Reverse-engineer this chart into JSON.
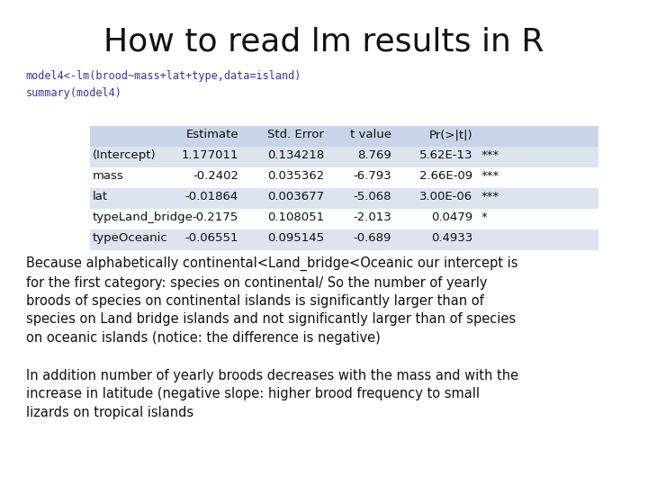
{
  "title": "How to read lm results in R",
  "code_line1": "model4<-lm(brood~mass+lat+type,data=island)",
  "code_line2": "summary(model4)",
  "table_headers": [
    "Estimate",
    "Std. Error",
    "t value",
    "Pr(>|t|)"
  ],
  "table_rows": [
    [
      "(Intercept)",
      "1.177011",
      "0.134218",
      "8.769",
      "5.62E-13",
      "***"
    ],
    [
      "mass",
      "-0.2402",
      "0.035362",
      "-6.793",
      "2.66E-09",
      "***"
    ],
    [
      "lat",
      "-0.01864",
      "0.003677",
      "-5.068",
      "3.00E-06",
      "***"
    ],
    [
      "typeLand_bridge",
      "-0.2175",
      "0.108051",
      "-2.013",
      "0.0479",
      "*"
    ],
    [
      "typeOceanic",
      "-0.06551",
      "0.095145",
      "-0.689",
      "0.4933",
      ""
    ]
  ],
  "para1": "Because alphabetically continental<Land_bridge<Oceanic our intercept is\nfor the first category: species on continental/ So the number of yearly\nbroods of species on continental islands is significantly larger than of\nspecies on Land bridge islands and not significantly larger than of species\non oceanic islands (notice: the difference is negative)",
  "para2": "In addition number of yearly broods decreases with the mass and with the\nincrease in latitude (negative slope: higher brood frequency to small\nlizards on tropical islands",
  "code_color": "#3333aa",
  "bg_color": "#ffffff",
  "title_fontsize": 26,
  "code_fontsize": 8.5,
  "table_fontsize": 9.5,
  "body_fontsize": 10.5,
  "row_bg_colors": [
    "#dce4f0",
    "#ffffff",
    "#dce4f0",
    "#ffffff",
    "#dce4f0"
  ],
  "header_bg_color": "#c8d4e8"
}
